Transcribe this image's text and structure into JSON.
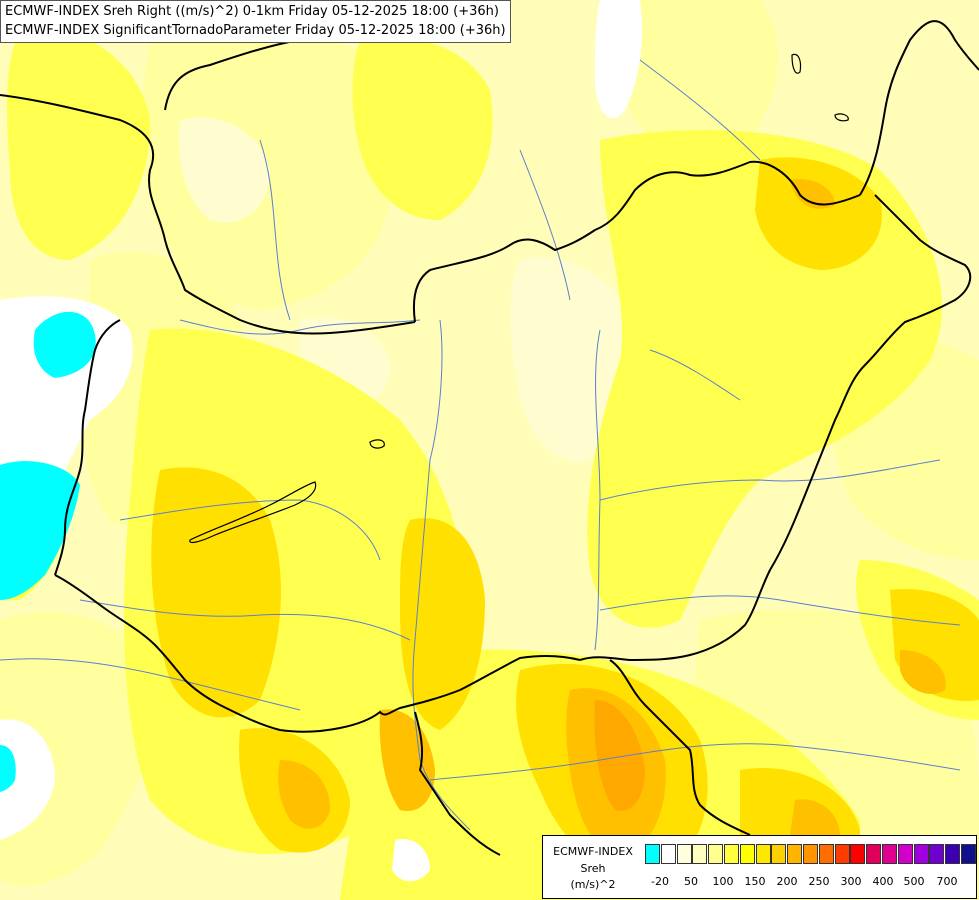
{
  "titles": {
    "line1": "ECMWF-INDEX Sreh Right ((m/s)^2) 0-1km Friday 05-12-2025 18:00 (+36h)",
    "line2": "ECMWF-INDEX SignificantTornadoParameter Friday 05-12-2025 18:00 (+36h)"
  },
  "legend": {
    "source": "ECMWF-INDEX",
    "variable": "Sreh",
    "unit": "(m/s)^2",
    "colors": [
      "#00ffff",
      "#ffffff",
      "#ffffe0",
      "#ffffc0",
      "#ffff90",
      "#ffff40",
      "#ffff00",
      "#ffe800",
      "#ffd000",
      "#ffb400",
      "#ff9400",
      "#ff6c00",
      "#ff3c00",
      "#ff0000",
      "#e0005c",
      "#e00090",
      "#d000c8",
      "#a000e0",
      "#7000d0",
      "#3c00b0",
      "#10108c"
    ],
    "ticks": [
      "-20",
      "50",
      "100",
      "150",
      "200",
      "250",
      "300",
      "400",
      "500",
      "700"
    ]
  },
  "map_colors": {
    "pale": "#fffdb8",
    "light": "#ffffa0",
    "yellow1": "#ffff50",
    "yellow2": "#ffee00",
    "gold": "#ffd700",
    "orange1": "#ffc000",
    "orange2": "#ffa800",
    "cyan": "#00ffff",
    "white": "#ffffff"
  }
}
